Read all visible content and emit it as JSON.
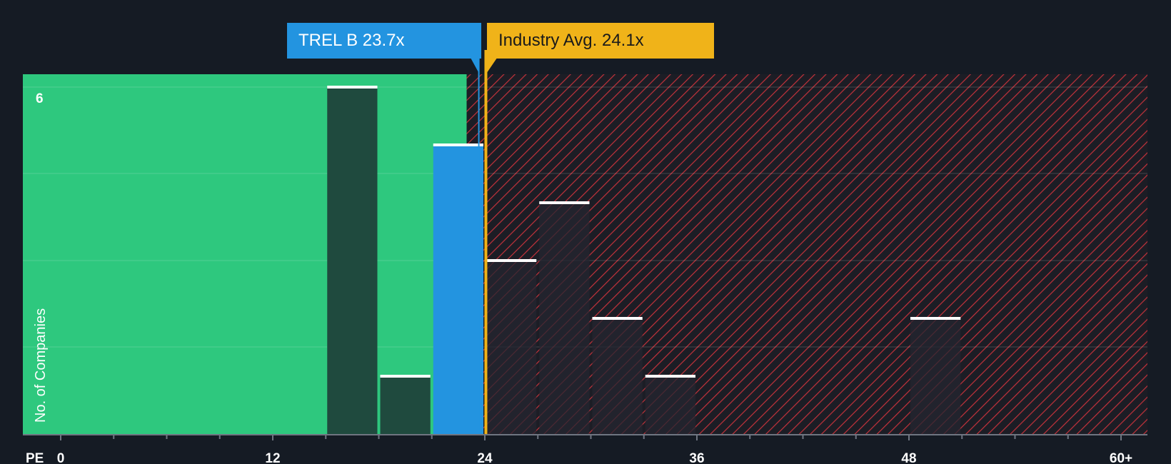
{
  "chart_data": {
    "type": "bar",
    "metric_label": "PE",
    "ylabel": "No. of Companies",
    "y_tick_labels": [
      {
        "value": 6,
        "label": "6"
      }
    ],
    "ylim": [
      0,
      6.2
    ],
    "xlim": [
      0,
      60
    ],
    "x_ticks": [
      {
        "value": 0,
        "label": "0"
      },
      {
        "value": 12,
        "label": "12"
      },
      {
        "value": 24,
        "label": "24"
      },
      {
        "value": 36,
        "label": "36"
      },
      {
        "value": 48,
        "label": "48"
      },
      {
        "value": 60,
        "label": "60+"
      }
    ],
    "bins": [
      {
        "x0": 15,
        "x1": 18,
        "count": 6,
        "zone": "undervalued"
      },
      {
        "x0": 18,
        "x1": 21,
        "count": 1,
        "zone": "undervalued"
      },
      {
        "x0": 21,
        "x1": 24,
        "count": 5,
        "zone": "company"
      },
      {
        "x0": 24,
        "x1": 27,
        "count": 3,
        "zone": "overvalued"
      },
      {
        "x0": 27,
        "x1": 30,
        "count": 4,
        "zone": "overvalued"
      },
      {
        "x0": 30,
        "x1": 33,
        "count": 2,
        "zone": "overvalued"
      },
      {
        "x0": 33,
        "x1": 36,
        "count": 1,
        "zone": "overvalued"
      },
      {
        "x0": 48,
        "x1": 51,
        "count": 2,
        "zone": "overvalued"
      }
    ],
    "company": {
      "name": "TREL B",
      "value": 23.7,
      "label": "TREL B 23.7x"
    },
    "industry_avg": {
      "value": 24.1,
      "label": "Industry Avg. 24.1x"
    }
  },
  "colors": {
    "background": "#151b24",
    "undervalued_zone": "#2ec87e",
    "overvalued_hatch": "#c3323b",
    "company": "#2394e0",
    "industry": "#f0b319",
    "bar_dark": "#1f4a3e",
    "bar_over": "#242530"
  }
}
